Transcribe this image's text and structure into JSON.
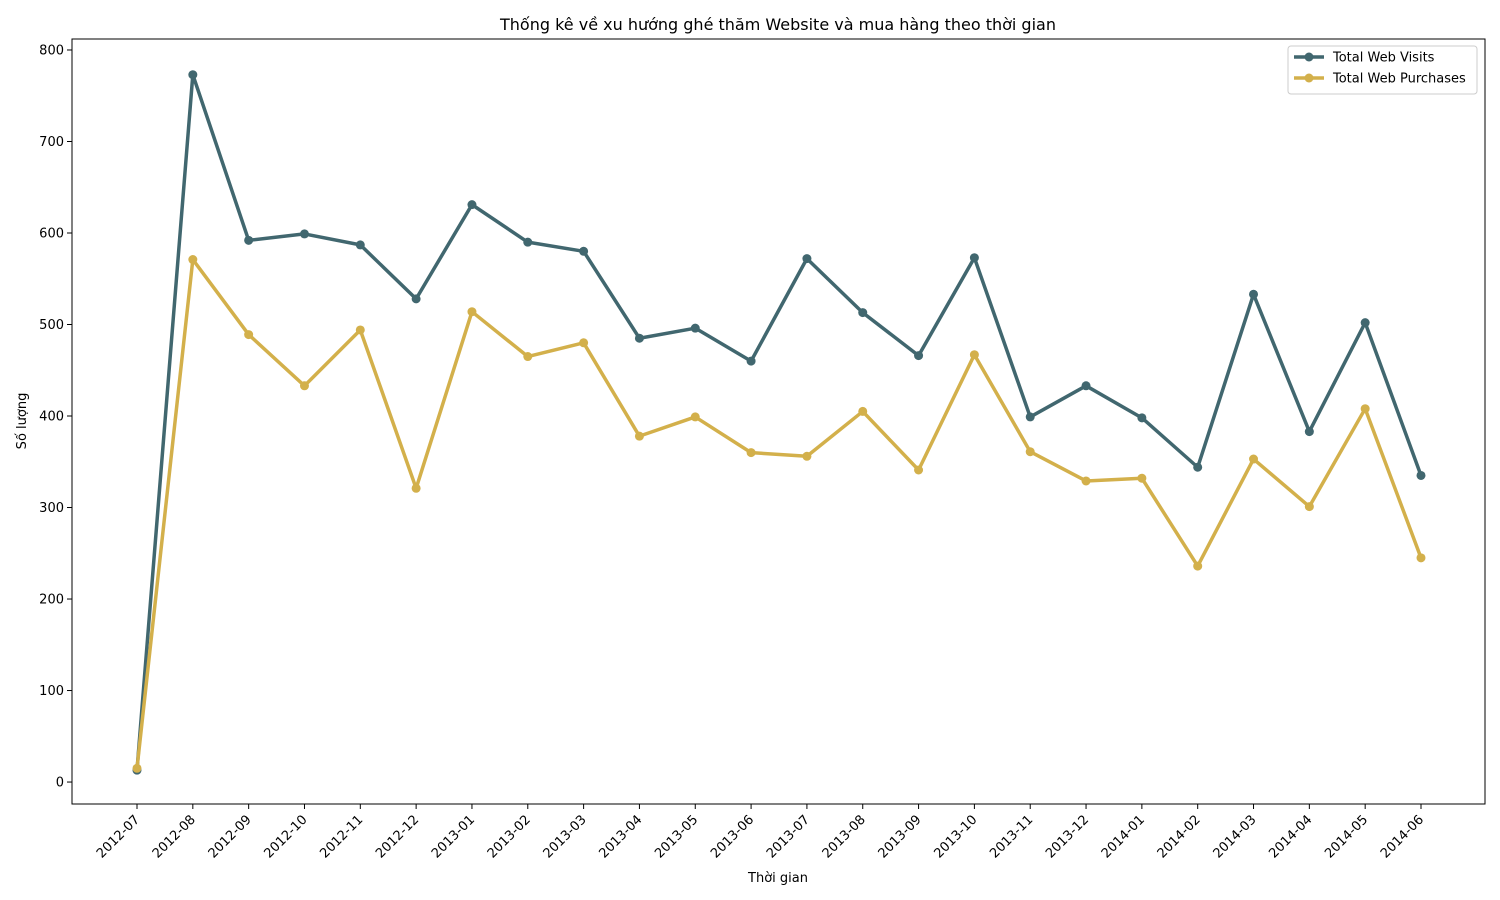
{
  "chart_data": {
    "type": "line",
    "title": "Thống kê về xu hướng ghé thăm Website và mua hàng theo thời gian",
    "xlabel": "Thời gian",
    "ylabel": "Số lượng",
    "categories": [
      "2012-07",
      "2012-08",
      "2012-09",
      "2012-10",
      "2012-11",
      "2012-12",
      "2013-01",
      "2013-02",
      "2013-03",
      "2013-04",
      "2013-05",
      "2013-06",
      "2013-07",
      "2013-08",
      "2013-09",
      "2013-10",
      "2013-11",
      "2013-12",
      "2014-01",
      "2014-02",
      "2014-03",
      "2014-04",
      "2014-05",
      "2014-06"
    ],
    "yticks": [
      0,
      100,
      200,
      300,
      400,
      500,
      600,
      700,
      800
    ],
    "ylim": [
      -24,
      812
    ],
    "grid": false,
    "legend_position": "top-right",
    "series": [
      {
        "name": "Total Web Visits",
        "color": "#41676f",
        "values": [
          13,
          773,
          592,
          599,
          587,
          528,
          631,
          590,
          580,
          485,
          496,
          460,
          572,
          513,
          466,
          573,
          399,
          433,
          398,
          344,
          533,
          383,
          502,
          335
        ]
      },
      {
        "name": "Total Web Purchases",
        "color": "#d3b04b",
        "values": [
          15,
          571,
          489,
          433,
          494,
          321,
          514,
          465,
          480,
          378,
          399,
          360,
          356,
          405,
          341,
          467,
          361,
          329,
          332,
          236,
          353,
          301,
          408,
          245
        ]
      }
    ]
  }
}
